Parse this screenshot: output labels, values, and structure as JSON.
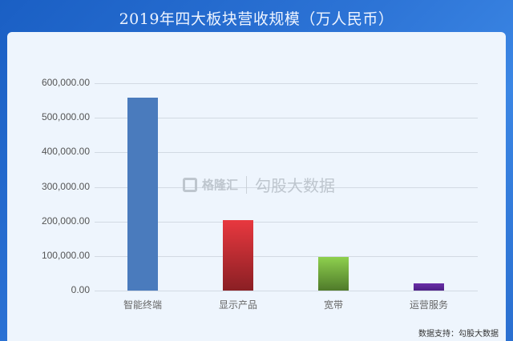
{
  "header": {
    "title": "2019年四大板块营收规模（万人民币）"
  },
  "watermark": {
    "brand": "格隆汇",
    "text": "勾股大数据"
  },
  "footer": {
    "source": "数据支持：勾股大数据"
  },
  "chart_data": {
    "type": "bar",
    "title": "2019年四大板块营收规模（万人民币）",
    "xlabel": "",
    "ylabel": "",
    "categories": [
      "智能终端",
      "显示产品",
      "宽带",
      "运营服务"
    ],
    "values": [
      558000,
      204000,
      97000,
      21000
    ],
    "colors": [
      "#4a7bbd",
      "#e8383f",
      "#8ed04e",
      "#6a2fa8"
    ],
    "ylim": [
      0,
      600000
    ],
    "yticks": [
      "0.00",
      "100,000.00",
      "200,000.00",
      "300,000.00",
      "400,000.00",
      "500,000.00",
      "600,000.00"
    ],
    "grid": true,
    "legend": null
  }
}
